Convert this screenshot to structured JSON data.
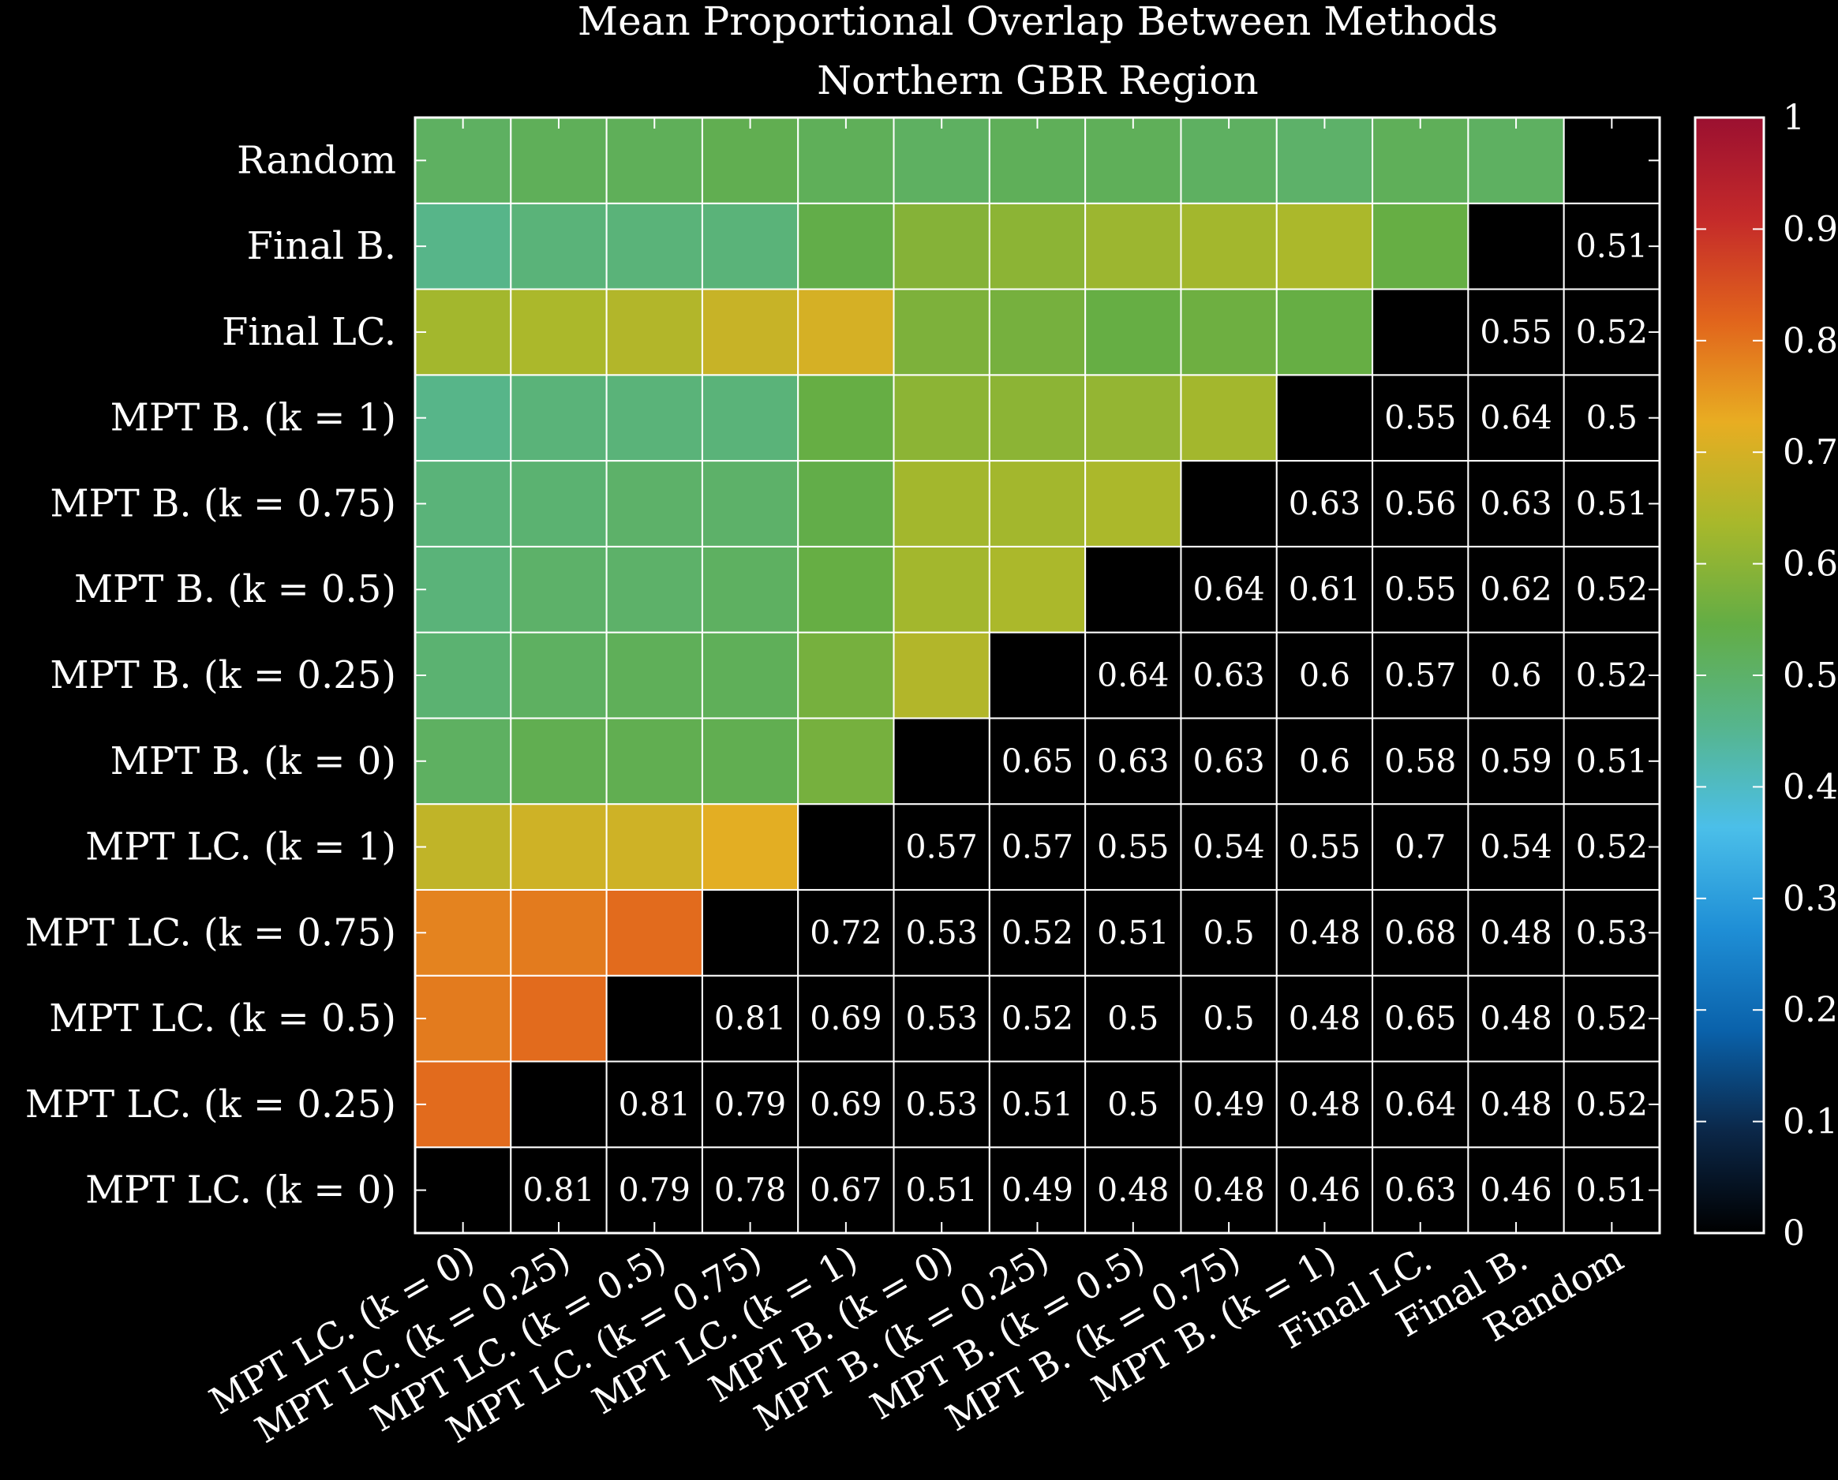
{
  "chart_data": {
    "type": "heatmap",
    "title": "Mean Proportional Overlap Between Methods",
    "subtitle": "Northern GBR Region",
    "labels": [
      "MPT LC. (k = 0)",
      "MPT LC. (k = 0.25)",
      "MPT LC. (k = 0.5)",
      "MPT LC. (k = 0.75)",
      "MPT LC. (k = 1)",
      "MPT B. (k = 0)",
      "MPT B. (k = 0.25)",
      "MPT B. (k = 0.5)",
      "MPT B. (k = 0.75)",
      "MPT B. (k = 1)",
      "Final LC.",
      "Final B.",
      "Random"
    ],
    "values": [
      [
        null,
        0.81,
        0.79,
        0.78,
        0.67,
        0.51,
        0.49,
        0.48,
        0.48,
        0.46,
        0.63,
        0.46,
        0.51
      ],
      [
        0.81,
        null,
        0.81,
        0.79,
        0.69,
        0.53,
        0.51,
        0.5,
        0.49,
        0.48,
        0.64,
        0.48,
        0.52
      ],
      [
        0.79,
        0.81,
        null,
        0.81,
        0.69,
        0.53,
        0.52,
        0.5,
        0.5,
        0.48,
        0.65,
        0.48,
        0.52
      ],
      [
        0.78,
        0.79,
        0.81,
        null,
        0.72,
        0.53,
        0.52,
        0.51,
        0.5,
        0.48,
        0.68,
        0.48,
        0.53
      ],
      [
        0.67,
        0.69,
        0.69,
        0.72,
        null,
        0.57,
        0.57,
        0.55,
        0.54,
        0.55,
        0.7,
        0.54,
        0.52
      ],
      [
        0.51,
        0.53,
        0.53,
        0.53,
        0.57,
        null,
        0.65,
        0.63,
        0.63,
        0.6,
        0.58,
        0.59,
        0.51
      ],
      [
        0.49,
        0.51,
        0.52,
        0.52,
        0.57,
        0.65,
        null,
        0.64,
        0.63,
        0.6,
        0.57,
        0.6,
        0.52
      ],
      [
        0.48,
        0.5,
        0.5,
        0.51,
        0.55,
        0.63,
        0.64,
        null,
        0.64,
        0.61,
        0.55,
        0.62,
        0.52
      ],
      [
        0.48,
        0.49,
        0.5,
        0.5,
        0.54,
        0.63,
        0.63,
        0.64,
        null,
        0.63,
        0.56,
        0.63,
        0.51
      ],
      [
        0.46,
        0.48,
        0.48,
        0.48,
        0.55,
        0.6,
        0.6,
        0.61,
        0.63,
        null,
        0.55,
        0.64,
        0.5
      ],
      [
        0.63,
        0.64,
        0.65,
        0.68,
        0.7,
        0.58,
        0.57,
        0.55,
        0.56,
        0.55,
        null,
        0.55,
        0.52
      ],
      [
        0.46,
        0.48,
        0.48,
        0.48,
        0.54,
        0.59,
        0.6,
        0.62,
        0.63,
        0.64,
        0.55,
        null,
        0.51
      ],
      [
        0.51,
        0.52,
        0.52,
        0.53,
        0.52,
        0.51,
        0.52,
        0.52,
        0.51,
        0.5,
        0.52,
        0.51,
        null
      ]
    ],
    "colorbar": {
      "range": [
        0,
        1
      ],
      "ticks": [
        "0",
        "0.1",
        "0.2",
        "0.3",
        "0.4",
        "0.5",
        "0.6",
        "0.7",
        "0.8",
        "0.9",
        "1"
      ],
      "colors": [
        "#000000",
        "#0b2748",
        "#0a62ab",
        "#1f8fd6",
        "#4bbfe9",
        "#56b58d",
        "#63ad45",
        "#a8b82b",
        "#e8ad22",
        "#e1641c",
        "#c42a2a",
        "#9b1030"
      ]
    },
    "display": "value labels in lower triangle; colored cells in upper triangle; diagonal empty"
  }
}
